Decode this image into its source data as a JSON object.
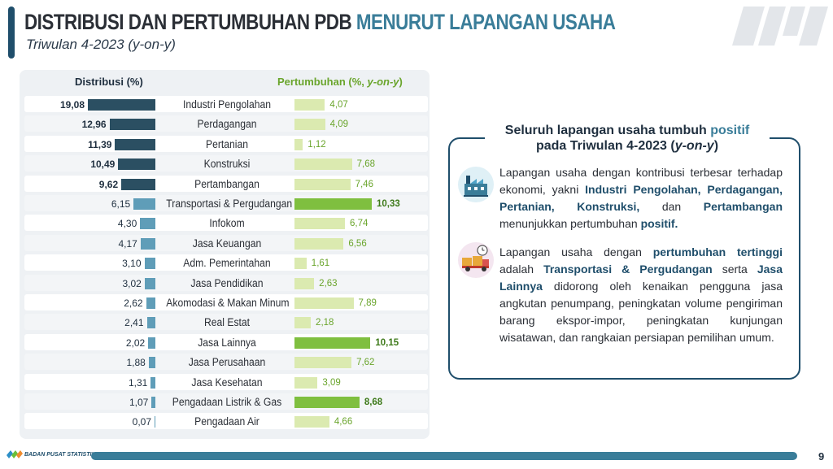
{
  "header": {
    "title_part1": "DISTRIBUSI DAN PERTUMBUHAN PDB",
    "title_part2": "MENURUT LAPANGAN USAHA",
    "subtitle": "Triwulan 4-2023 (y-on-y)"
  },
  "colors": {
    "dark_navy": "#1f4e6b",
    "dist_bar": "#2b4f62",
    "dist_bar_light": "#5f9db8",
    "growth_bar": "#dbeab0",
    "growth_bar_high": "#7fbf3f",
    "growth_text": "#6aa52c"
  },
  "chart_data": {
    "type": "bar",
    "title": "",
    "categories": [
      "Industri Pengolahan",
      "Perdagangan",
      "Pertanian",
      "Konstruksi",
      "Pertambangan",
      "Transportasi & Pergudangan",
      "Infokom",
      "Jasa Keuangan",
      "Adm. Pemerintahan",
      "Jasa Pendidikan",
      "Akomodasi & Makan Minum",
      "Real Estat",
      "Jasa Lainnya",
      "Jasa Perusahaan",
      "Jasa Kesehatan",
      "Pengadaan Listrik & Gas",
      "Pengadaan Air"
    ],
    "series": [
      {
        "name": "Distribusi (%)",
        "values": [
          19.08,
          12.96,
          11.39,
          10.49,
          9.62,
          6.15,
          4.3,
          4.17,
          3.1,
          3.02,
          2.62,
          2.41,
          2.02,
          1.88,
          1.31,
          1.07,
          0.07
        ],
        "labels": [
          "19,08",
          "12,96",
          "11,39",
          "10,49",
          "9,62",
          "6,15",
          "4,30",
          "4,17",
          "3,10",
          "3,02",
          "2,62",
          "2,41",
          "2,02",
          "1,88",
          "1,31",
          "1,07",
          "0,07"
        ]
      },
      {
        "name": "Pertumbuhan (%, y-on-y)",
        "values": [
          4.07,
          4.09,
          1.12,
          7.68,
          7.46,
          10.33,
          6.74,
          6.56,
          1.61,
          2.63,
          7.89,
          2.18,
          10.15,
          7.62,
          3.09,
          8.68,
          4.66
        ],
        "labels": [
          "4,07",
          "4,09",
          "1,12",
          "7,68",
          "7,46",
          "10,33",
          "6,74",
          "6,56",
          "1,61",
          "2,63",
          "7,89",
          "2,18",
          "10,15",
          "7,62",
          "3,09",
          "8,68",
          "4,66"
        ]
      }
    ],
    "headers": {
      "distribution": "Distribusi (%)",
      "growth_main": "Pertumbuhan (%, ",
      "growth_italic": "y-on-y",
      "growth_close": ")"
    },
    "highlight_growth": [
      5,
      12,
      15
    ],
    "legend": "none",
    "grid": false
  },
  "info": {
    "title_line1_a": "Seluruh lapangan usaha tumbuh ",
    "title_line1_b": "positif",
    "title_line2_a": "pada Triwulan 4-2023 (",
    "title_line2_b": "y-on-y",
    "title_line2_c": ")",
    "para1": {
      "t1": "Lapangan usaha dengan kontribusi terbesar terhadap ekonomi, yakni ",
      "h1": "Industri Pengolahan, Perdagangan, Pertanian, Konstruksi,",
      "t2": " dan ",
      "h2": "Pertambangan",
      "t3": " menunjukkan pertumbuhan ",
      "h3": "positif.",
      "icon": "factory-icon"
    },
    "para2": {
      "t1": "Lapangan usaha dengan ",
      "h1": "pertumbuhan tertinggi",
      "t2": " adalah ",
      "h2": "Transportasi & Pergudangan",
      "t3": " serta ",
      "h3": "Jasa Lainnya",
      "t4": " didorong oleh kenaikan pengguna jasa angkutan penumpang, peningkatan volume pengiriman barang ekspor-impor, peningkatan kunjungan wisatawan, dan rangkaian persiapan pemilihan umum.",
      "icon": "delivery-truck-icon"
    }
  },
  "footer": {
    "org": "BADAN PUSAT STATISTIK",
    "page": "9"
  }
}
